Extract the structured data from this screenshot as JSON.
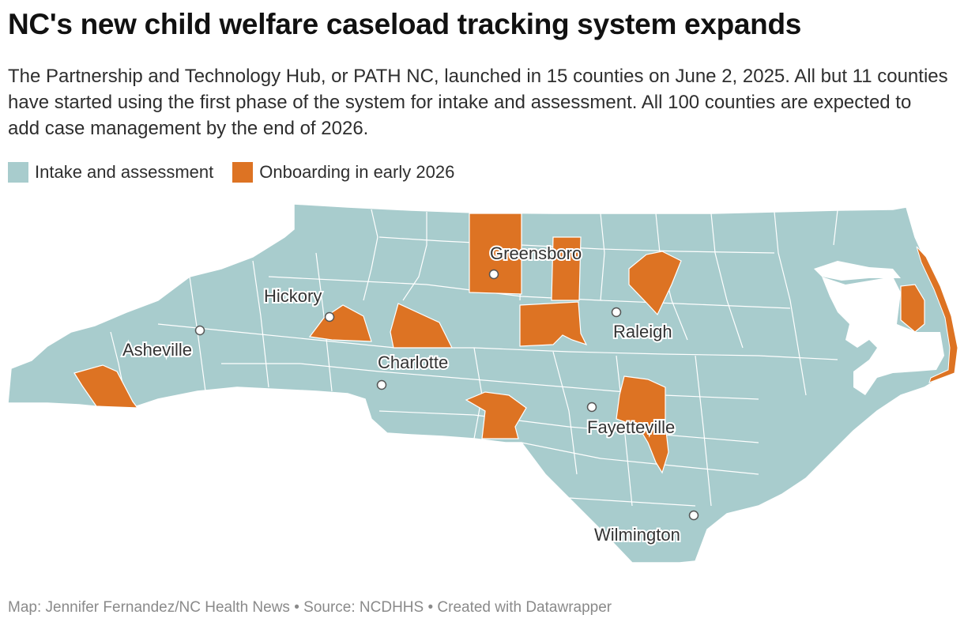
{
  "title": "NC's new child welfare caseload tracking system expands",
  "subtitle": "The Partnership and Technology Hub, or PATH NC, launched in 15 counties on June 2, 2025. All but 11 counties have started using the first phase of the system for intake and assessment. All 100 counties are expected to add case management by the end of 2026.",
  "colors": {
    "intake": "#a8cccd",
    "onboarding": "#dd7323",
    "border": "#ffffff"
  },
  "legend": [
    {
      "label": "Intake and assessment",
      "color": "#a8cccd"
    },
    {
      "label": "Onboarding in early 2026",
      "color": "#dd7323"
    }
  ],
  "cities": [
    {
      "name": "Greensboro"
    },
    {
      "name": "Hickory"
    },
    {
      "name": "Raleigh"
    },
    {
      "name": "Asheville"
    },
    {
      "name": "Charlotte"
    },
    {
      "name": "Fayetteville"
    },
    {
      "name": "Wilmington"
    }
  ],
  "footer": "Map: Jennifer Fernandez/NC Health News • Source: NCDHHS • Created with Datawrapper"
}
